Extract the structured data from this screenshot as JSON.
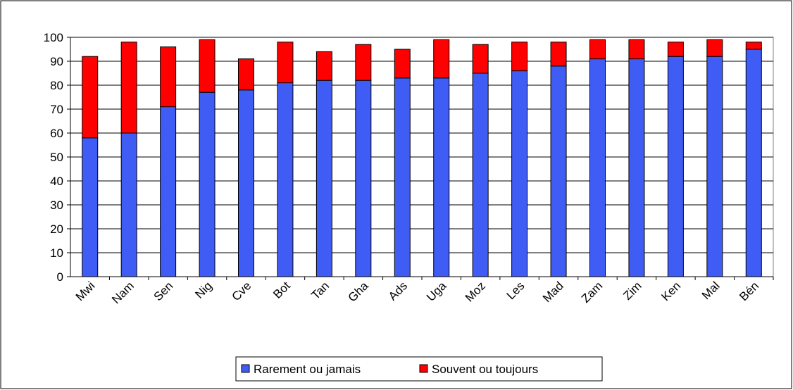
{
  "chart_data": {
    "type": "stacked_bar",
    "categories": [
      "Mwi",
      "Nam",
      "Sen",
      "Nig",
      "Cve",
      "Bot",
      "Tan",
      "Gha",
      "Ads",
      "Uga",
      "Moz",
      "Les",
      "Mad",
      "Zam",
      "Zim",
      "Ken",
      "Mal",
      "Bén"
    ],
    "series": [
      {
        "name": "Rarement ou jamais",
        "color": "#3f5cf5",
        "values": [
          58,
          60,
          71,
          77,
          78,
          81,
          82,
          82,
          83,
          83,
          85,
          86,
          88,
          91,
          91,
          92,
          92,
          95
        ]
      },
      {
        "name": "Souvent ou toujours",
        "color": "#ff0000",
        "values": [
          34,
          38,
          25,
          22,
          13,
          17,
          12,
          15,
          12,
          16,
          12,
          12,
          10,
          8,
          8,
          6,
          7,
          3
        ]
      }
    ],
    "ylim": [
      0,
      100
    ],
    "yticks": [
      0,
      10,
      20,
      30,
      40,
      50,
      60,
      70,
      80,
      90,
      100
    ],
    "grid": true,
    "legend": "bottom"
  }
}
